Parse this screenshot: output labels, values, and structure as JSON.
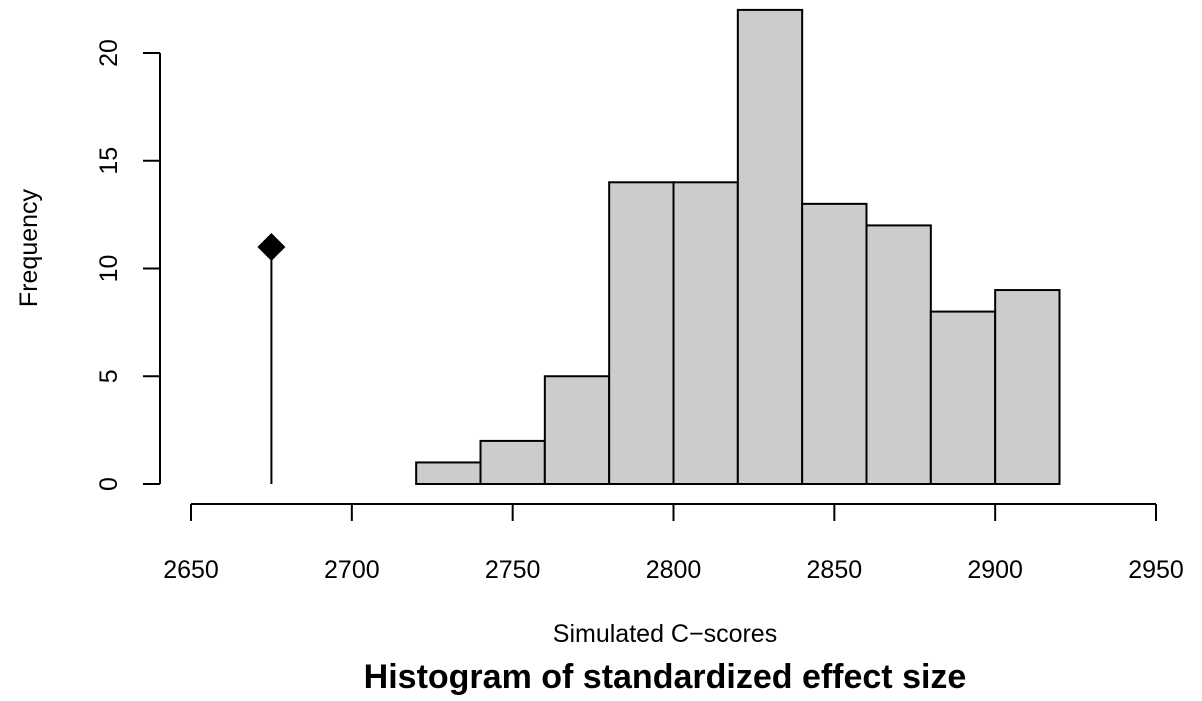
{
  "chart_data": {
    "type": "bar",
    "title": "Histogram of standardized effect size",
    "xlabel": "Simulated C−scores",
    "ylabel": "Frequency",
    "xlim": [
      2650,
      2950
    ],
    "ylim": [
      0,
      22
    ],
    "x_ticks": [
      "2650",
      "2700",
      "2750",
      "2800",
      "2850",
      "2900",
      "2950"
    ],
    "y_ticks": [
      "0",
      "5",
      "10",
      "15",
      "20"
    ],
    "bins": [
      {
        "from": 2720,
        "to": 2740,
        "count": 1
      },
      {
        "from": 2740,
        "to": 2760,
        "count": 2
      },
      {
        "from": 2760,
        "to": 2780,
        "count": 5
      },
      {
        "from": 2780,
        "to": 2800,
        "count": 14
      },
      {
        "from": 2800,
        "to": 2820,
        "count": 14
      },
      {
        "from": 2820,
        "to": 2840,
        "count": 22
      },
      {
        "from": 2840,
        "to": 2860,
        "count": 13
      },
      {
        "from": 2860,
        "to": 2880,
        "count": 12
      },
      {
        "from": 2880,
        "to": 2900,
        "count": 8
      },
      {
        "from": 2900,
        "to": 2920,
        "count": 9
      }
    ],
    "observed_marker": {
      "x": 2675,
      "y": 11,
      "shape": "diamond"
    },
    "bar_fill": "#cccccc",
    "bar_stroke": "#000000",
    "grid": false,
    "legend": "none"
  }
}
